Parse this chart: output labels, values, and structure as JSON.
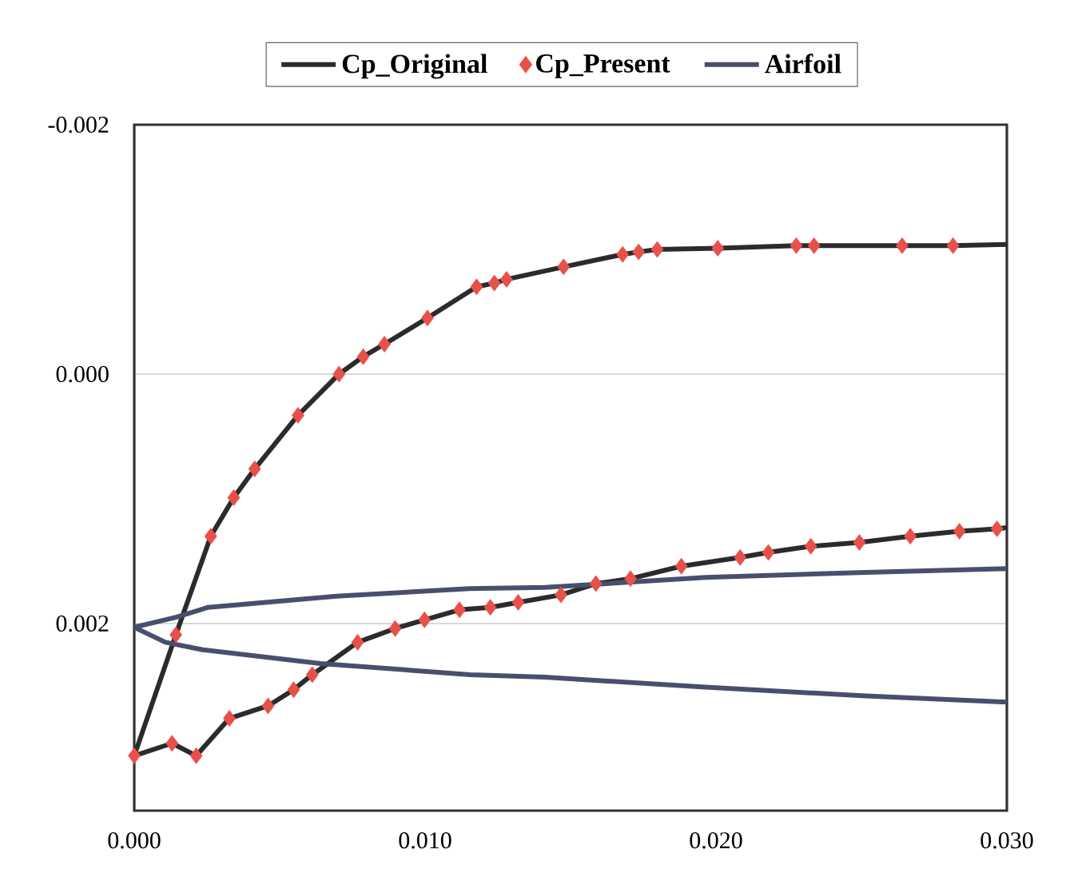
{
  "chart_data": {
    "type": "line",
    "xlim": [
      0,
      0.03
    ],
    "ylim": [
      0.0035,
      -0.002
    ],
    "xticks": [
      {
        "value": 0,
        "label": "0.000"
      },
      {
        "value": 0.01,
        "label": "0.010"
      },
      {
        "value": 0.02,
        "label": "0.020"
      },
      {
        "value": 0.03,
        "label": "0.030"
      }
    ],
    "yticks": [
      {
        "value": -0.002,
        "label": "-0.002"
      },
      {
        "value": 0,
        "label": "0.000"
      },
      {
        "value": 0.002,
        "label": "0.002"
      }
    ],
    "grid": "y",
    "legend": "top",
    "series": [
      {
        "name": "Cp_Original",
        "color": "#2b2b2b",
        "x": [
          0.03,
          0.02815,
          0.0264,
          0.02337,
          0.02276,
          0.02006,
          0.01798,
          0.01734,
          0.01679,
          0.01476,
          0.0128,
          0.01238,
          0.01177,
          0.01008,
          0.0086,
          0.00787,
          0.00704,
          0.00563,
          0.00414,
          0.00342,
          0.00263,
          0.00143,
          0,
          0.0013,
          0.00213,
          0.00327,
          0.0046,
          0.00548,
          0.00612,
          0.00768,
          0.00897,
          0.00998,
          0.01118,
          0.01224,
          0.0132,
          0.01467,
          0.01587,
          0.01706,
          0.01881,
          0.02083,
          0.0218,
          0.02326,
          0.02493,
          0.02668,
          0.02837,
          0.02966,
          0.03
        ],
        "values": [
          -0.00104,
          -0.00103,
          -0.00103,
          -0.00103,
          -0.00103,
          -0.00101,
          -0.001,
          -0.00098,
          -0.00096,
          -0.00086,
          -0.00076,
          -0.00073,
          -0.0007,
          -0.00045,
          -0.00024,
          -0.00014,
          0,
          0.00033,
          0.00076,
          0.00099,
          0.0013,
          0.00209,
          0.00306,
          0.00296,
          0.00306,
          0.00276,
          0.00266,
          0.00253,
          0.00241,
          0.00215,
          0.00204,
          0.00197,
          0.00189,
          0.00187,
          0.00183,
          0.00177,
          0.00168,
          0.00164,
          0.00154,
          0.00147,
          0.00143,
          0.00138,
          0.00135,
          0.0013,
          0.00126,
          0.00124,
          0.00123
        ]
      },
      {
        "name": "Cp_Present",
        "type": "scatter",
        "marker": "diamond",
        "color": "#e8504a",
        "x": [
          0.02815,
          0.0264,
          0.02337,
          0.02276,
          0.02006,
          0.01798,
          0.01734,
          0.01679,
          0.01476,
          0.0128,
          0.01238,
          0.01177,
          0.01008,
          0.0086,
          0.00787,
          0.00704,
          0.00563,
          0.00414,
          0.00342,
          0.00263,
          0.00143,
          0,
          0.0013,
          0.00213,
          0.00327,
          0.0046,
          0.00548,
          0.00612,
          0.00768,
          0.00897,
          0.00998,
          0.01118,
          0.01224,
          0.0132,
          0.01467,
          0.01587,
          0.01706,
          0.01881,
          0.02083,
          0.0218,
          0.02326,
          0.02493,
          0.02668,
          0.02837,
          0.02966
        ],
        "values": [
          -0.00103,
          -0.00103,
          -0.00103,
          -0.00103,
          -0.00101,
          -0.001,
          -0.00098,
          -0.00096,
          -0.00086,
          -0.00076,
          -0.00073,
          -0.0007,
          -0.00045,
          -0.00024,
          -0.00014,
          0,
          0.00033,
          0.00076,
          0.00099,
          0.0013,
          0.00209,
          0.00306,
          0.00296,
          0.00306,
          0.00276,
          0.00266,
          0.00253,
          0.00241,
          0.00215,
          0.00204,
          0.00197,
          0.00189,
          0.00187,
          0.00183,
          0.00177,
          0.00168,
          0.00164,
          0.00154,
          0.00147,
          0.00143,
          0.00138,
          0.00135,
          0.0013,
          0.00126,
          0.00124
        ]
      },
      {
        "name": "Airfoil",
        "color": "#4a4e6e",
        "x": [
          0.03,
          0.02515,
          0.01964,
          0.01412,
          0.01153,
          0.00695,
          0.00254,
          0.00143,
          0,
          0.00107,
          0.00235,
          0.0064,
          0.01155,
          0.01412,
          0.01964,
          0.02515,
          0.03
        ],
        "values": [
          0.00156,
          0.00159,
          0.00163,
          0.00171,
          0.00172,
          0.00178,
          0.00187,
          0.00195,
          0.00203,
          0.00215,
          0.00221,
          0.00232,
          0.00241,
          0.00243,
          0.00251,
          0.00258,
          0.00263
        ]
      }
    ]
  }
}
